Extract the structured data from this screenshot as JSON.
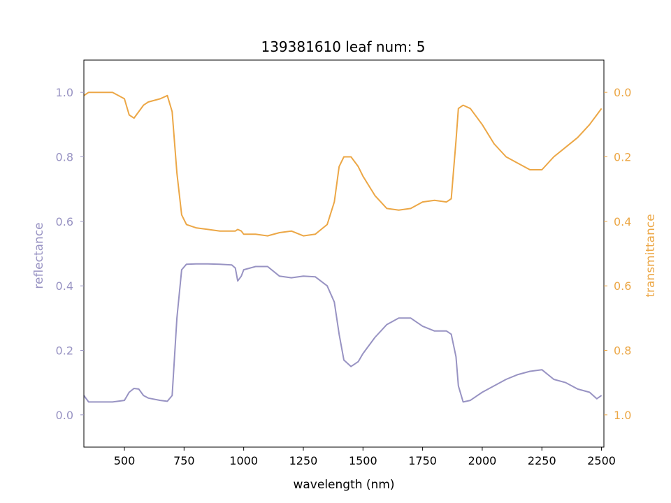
{
  "chart_data": {
    "type": "line",
    "title": "139381610 leaf num: 5",
    "xlabel": "wavelength (nm)",
    "ylabel_left": "reflectance",
    "ylabel_right": "transmittance",
    "xlim": [
      330,
      2510
    ],
    "ylim_left": [
      -0.1,
      1.1
    ],
    "ylim_right": [
      1.1,
      -0.1
    ],
    "right_axis_inverted": true,
    "x_ticks": [
      500,
      750,
      1000,
      1250,
      1500,
      1750,
      2000,
      2250,
      2500
    ],
    "y_ticks_left": [
      0.0,
      0.2,
      0.4,
      0.6,
      0.8,
      1.0
    ],
    "y_ticks_right": [
      0.0,
      0.2,
      0.4,
      0.6,
      0.8,
      1.0
    ],
    "grid": false,
    "legend": "none",
    "colors": {
      "reflectance": "#9893c3",
      "transmittance": "#eca746",
      "axis": "#000000"
    },
    "series": [
      {
        "axis": "left",
        "x": [
          330,
          350,
          400,
          450,
          500,
          520,
          540,
          560,
          580,
          600,
          650,
          680,
          700,
          720,
          740,
          760,
          800,
          850,
          900,
          950,
          965,
          975,
          990,
          1000,
          1050,
          1100,
          1150,
          1200,
          1250,
          1300,
          1350,
          1380,
          1400,
          1420,
          1450,
          1480,
          1500,
          1550,
          1600,
          1650,
          1700,
          1750,
          1800,
          1850,
          1870,
          1890,
          1900,
          1920,
          1950,
          2000,
          2050,
          2100,
          2150,
          2200,
          2250,
          2300,
          2350,
          2400,
          2450,
          2480,
          2500
        ],
        "y": [
          0.06,
          0.04,
          0.04,
          0.04,
          0.045,
          0.07,
          0.082,
          0.08,
          0.06,
          0.052,
          0.045,
          0.042,
          0.06,
          0.3,
          0.45,
          0.467,
          0.468,
          0.468,
          0.467,
          0.465,
          0.455,
          0.415,
          0.43,
          0.45,
          0.46,
          0.46,
          0.43,
          0.425,
          0.43,
          0.428,
          0.4,
          0.35,
          0.25,
          0.17,
          0.15,
          0.165,
          0.19,
          0.24,
          0.28,
          0.3,
          0.3,
          0.275,
          0.26,
          0.26,
          0.25,
          0.18,
          0.09,
          0.04,
          0.045,
          0.07,
          0.09,
          0.11,
          0.125,
          0.135,
          0.14,
          0.11,
          0.1,
          0.08,
          0.07,
          0.05,
          0.06
        ]
      },
      {
        "axis": "right",
        "x": [
          330,
          350,
          400,
          450,
          500,
          520,
          540,
          560,
          580,
          600,
          650,
          680,
          700,
          720,
          740,
          760,
          800,
          850,
          900,
          950,
          965,
          975,
          990,
          1000,
          1050,
          1100,
          1150,
          1200,
          1250,
          1300,
          1350,
          1380,
          1400,
          1420,
          1450,
          1480,
          1500,
          1550,
          1600,
          1650,
          1700,
          1750,
          1800,
          1850,
          1870,
          1890,
          1900,
          1920,
          1950,
          2000,
          2050,
          2100,
          2150,
          2200,
          2250,
          2300,
          2350,
          2400,
          2450,
          2480,
          2500
        ],
        "y": [
          0.01,
          0.0,
          0.0,
          0.0,
          0.02,
          0.07,
          0.08,
          0.06,
          0.04,
          0.03,
          0.02,
          0.01,
          0.06,
          0.25,
          0.38,
          0.41,
          0.42,
          0.425,
          0.43,
          0.43,
          0.43,
          0.425,
          0.43,
          0.44,
          0.44,
          0.445,
          0.435,
          0.43,
          0.445,
          0.44,
          0.41,
          0.34,
          0.23,
          0.2,
          0.2,
          0.23,
          0.26,
          0.32,
          0.36,
          0.365,
          0.36,
          0.34,
          0.335,
          0.34,
          0.33,
          0.15,
          0.05,
          0.04,
          0.05,
          0.1,
          0.16,
          0.2,
          0.22,
          0.24,
          0.24,
          0.2,
          0.17,
          0.14,
          0.1,
          0.07,
          0.05
        ]
      }
    ]
  }
}
